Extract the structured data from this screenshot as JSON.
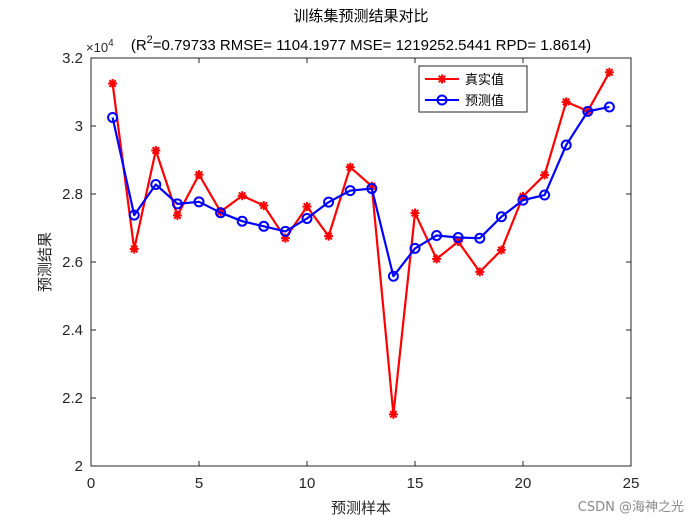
{
  "chart_data": {
    "type": "line",
    "title": "训练集预测结果对比",
    "subtitle_prefix": "(R",
    "subtitle_sup": "2",
    "subtitle_rest": "=0.79733 RMSE= 1104.1977 MSE= 1219252.5441 RPD= 1.8614)",
    "xlabel": "预测样本",
    "ylabel": "预测结果",
    "y_exponent_base": "×10",
    "y_exponent_power": "4",
    "xlim": [
      0,
      25
    ],
    "ylim": [
      2.0,
      3.2
    ],
    "xticks": [
      0,
      5,
      10,
      15,
      20,
      25
    ],
    "yticks": [
      2,
      2.2,
      2.4,
      2.6,
      2.8,
      3,
      3.2
    ],
    "ytick_labels": [
      "2",
      "2.2",
      "2.4",
      "2.6",
      "2.8",
      "3",
      "3.2"
    ],
    "x": [
      1,
      2,
      3,
      4,
      5,
      6,
      7,
      8,
      9,
      10,
      11,
      12,
      13,
      14,
      15,
      16,
      17,
      18,
      19,
      20,
      21,
      22,
      23,
      24
    ],
    "series": [
      {
        "name": "真实值",
        "color": "#ff0000",
        "marker": "asterisk",
        "values": [
          3.125,
          2.638,
          2.928,
          2.737,
          2.857,
          2.748,
          2.795,
          2.766,
          2.67,
          2.763,
          2.676,
          2.879,
          2.823,
          2.152,
          2.744,
          2.609,
          2.66,
          2.571,
          2.635,
          2.793,
          2.856,
          3.071,
          3.044,
          3.158
        ]
      },
      {
        "name": "预测值",
        "color": "#0000ff",
        "marker": "circle",
        "values": [
          3.025,
          2.738,
          2.828,
          2.771,
          2.777,
          2.745,
          2.72,
          2.705,
          2.69,
          2.728,
          2.776,
          2.81,
          2.816,
          2.558,
          2.64,
          2.678,
          2.672,
          2.67,
          2.733,
          2.782,
          2.797,
          2.944,
          3.043,
          3.056
        ]
      }
    ],
    "legend_position": "top-right"
  },
  "watermark": "CSDN @海神之光"
}
